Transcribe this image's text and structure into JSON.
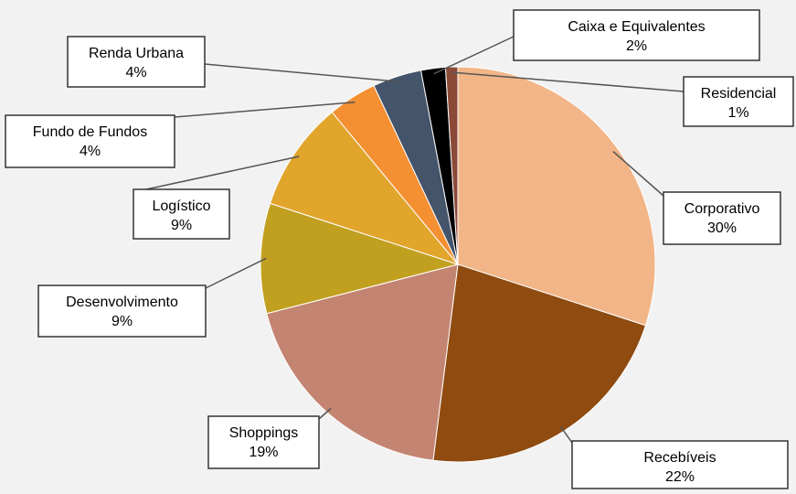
{
  "chart_data": {
    "type": "pie",
    "legend": "none",
    "slices": [
      {
        "label": "Corporativo",
        "value": 30,
        "display": "30%",
        "color": "#F2B587"
      },
      {
        "label": "Recebíveis",
        "value": 22,
        "display": "22%",
        "color": "#8F4B10"
      },
      {
        "label": "Shoppings",
        "value": 19,
        "display": "19%",
        "color": "#C48472"
      },
      {
        "label": "Desenvolvimento",
        "value": 9,
        "display": "9%",
        "color": "#C1A020"
      },
      {
        "label": "Logístico",
        "value": 9,
        "display": "9%",
        "color": "#E1A52C"
      },
      {
        "label": "Fundo de Fundos",
        "value": 4,
        "display": "4%",
        "color": "#F48F32"
      },
      {
        "label": "Renda Urbana",
        "value": 4,
        "display": "4%",
        "color": "#44546A"
      },
      {
        "label": "Caixa e Equivalentes",
        "value": 2,
        "display": "2%",
        "color": "#000000"
      },
      {
        "label": "Residencial",
        "value": 1,
        "display": "1%",
        "color": "#8B4A38"
      }
    ]
  }
}
